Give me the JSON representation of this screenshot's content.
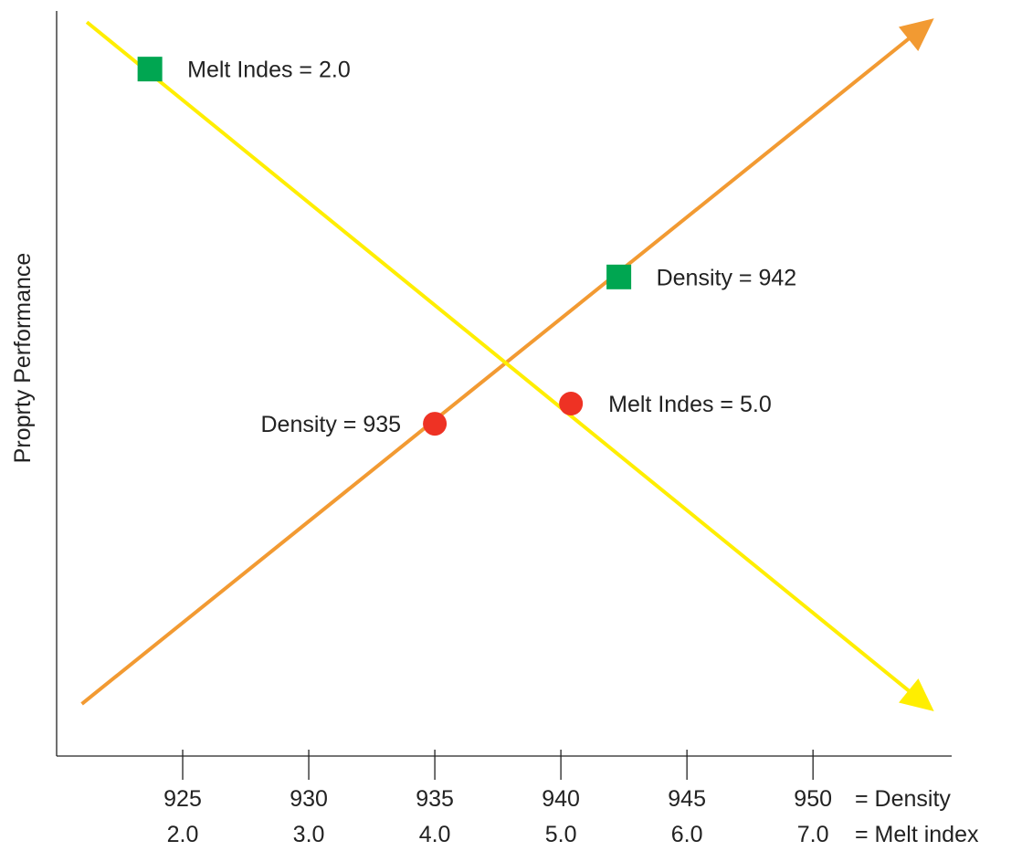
{
  "chart_data": {
    "type": "line",
    "title": "",
    "ylabel": "Proprty Performance",
    "x_axes": [
      {
        "name": "= Density",
        "ticks": [
          "925",
          "930",
          "935",
          "940",
          "945",
          "950"
        ],
        "values": [
          925,
          930,
          935,
          940,
          945,
          950
        ]
      },
      {
        "name": "= Melt index",
        "ticks": [
          "2.0",
          "3.0",
          "4.0",
          "5.0",
          "6.0",
          "7.0"
        ],
        "values": [
          2.0,
          3.0,
          4.0,
          5.0,
          6.0,
          7.0
        ]
      }
    ],
    "xlim": [
      920,
      955.5
    ],
    "ylim": [
      0,
      100
    ],
    "grid": false,
    "series": [
      {
        "key": "density_line",
        "color": "#F29A32",
        "x": [
          921,
          954.8
        ],
        "y": [
          7,
          99
        ]
      },
      {
        "key": "melt_index_line",
        "color": "#FFEE00",
        "x": [
          921.2,
          954.8
        ],
        "y": [
          98.5,
          6
        ]
      }
    ],
    "markers": [
      {
        "key": "mi2",
        "shape": "square",
        "color": "#00A651",
        "x": 923.7,
        "y": 92.2,
        "label": "Melt Indes = 2.0",
        "label_side": "right"
      },
      {
        "key": "d942",
        "shape": "square",
        "color": "#00A651",
        "x": 942.3,
        "y": 64.3,
        "label": "Density = 942",
        "label_side": "right"
      },
      {
        "key": "d935",
        "shape": "circle",
        "color": "#EE3224",
        "x": 935,
        "y": 44.6,
        "label": "Density = 935",
        "label_side": "left"
      },
      {
        "key": "mi5",
        "shape": "circle",
        "color": "#EE3224",
        "x": 940.4,
        "y": 47.3,
        "label": "Melt Indes = 5.0",
        "label_side": "right"
      }
    ],
    "axis_color": "#222222"
  }
}
